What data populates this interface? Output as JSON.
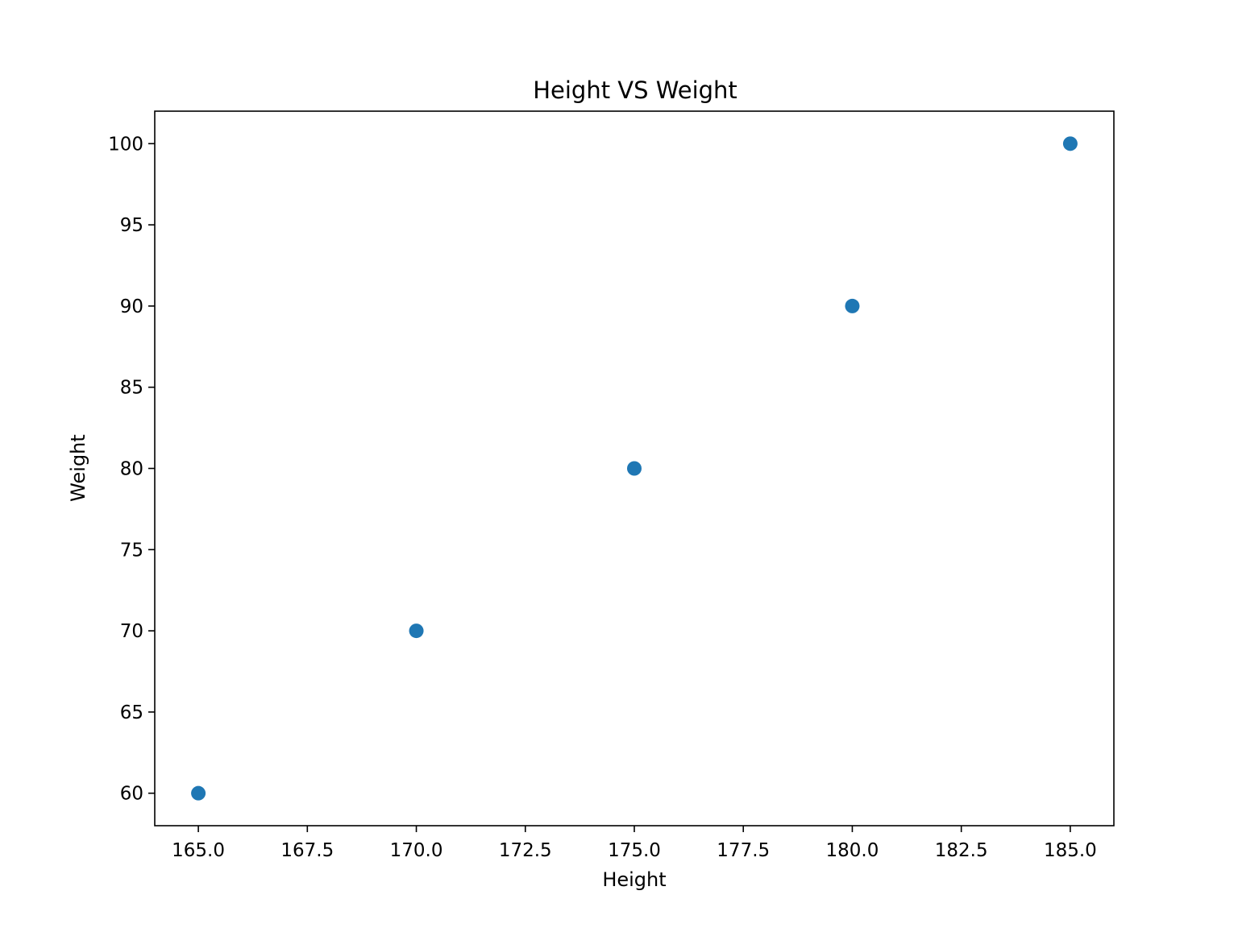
{
  "chart_data": {
    "type": "scatter",
    "title": "Height VS Weight",
    "xlabel": "Height",
    "ylabel": "Weight",
    "x": [
      165,
      170,
      175,
      180,
      185
    ],
    "y": [
      60,
      70,
      80,
      90,
      100
    ],
    "xlim": [
      164,
      186
    ],
    "ylim": [
      58,
      102
    ],
    "xticks": [
      "165.0",
      "167.5",
      "170.0",
      "172.5",
      "175.0",
      "177.5",
      "180.0",
      "182.5",
      "185.0"
    ],
    "yticks": [
      "60",
      "65",
      "70",
      "75",
      "80",
      "85",
      "90",
      "95",
      "100"
    ],
    "grid": false,
    "legend": "none",
    "marker_color": "#1f77b4"
  }
}
